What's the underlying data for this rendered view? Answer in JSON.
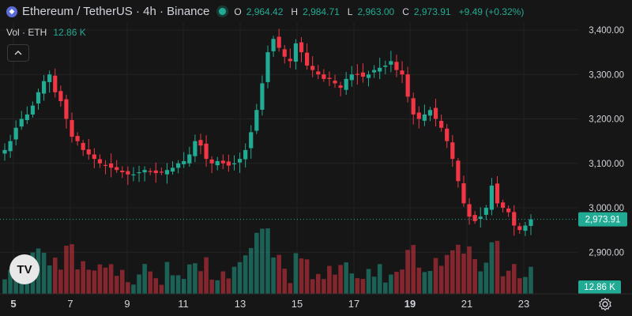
{
  "header": {
    "symbol_title": "Ethereum / TetherUS · 4h · Binance",
    "open_label": "O",
    "open_value": "2,964.42",
    "high_label": "H",
    "high_value": "2,984.71",
    "low_label": "L",
    "low_value": "2,963.00",
    "close_label": "C",
    "close_value": "2,973.91",
    "change_value": "+9.49 (+0.32%)"
  },
  "volume_legend": {
    "label": "Vol · ETH",
    "value": "12.86 K"
  },
  "logo_text": "TV",
  "icons": {
    "collapse": "chevron-up-icon",
    "settings": "gear-icon",
    "symbol": "ethereum-icon"
  },
  "colors": {
    "up": "#22ab94",
    "down": "#f23645",
    "background": "#161616",
    "accent": "#22ab94"
  },
  "chart_data": {
    "type": "candlestick",
    "y_ticks": [
      "3,400.00",
      "3,300.00",
      "3,200.00",
      "3,100.00",
      "3,000.00",
      "2,900.00"
    ],
    "y_tick_values": [
      3400,
      3300,
      3200,
      3100,
      3000,
      2900
    ],
    "x_ticks": [
      "5",
      "7",
      "9",
      "11",
      "13",
      "15",
      "17",
      "19",
      "21",
      "23"
    ],
    "x_tick_bold": [
      "5",
      "19"
    ],
    "last_price": "2,973.91",
    "last_price_value": 2973.91,
    "volume_badge": "12.86 K",
    "grid": true,
    "price_path": [
      3130,
      3150,
      3180,
      3200,
      3210,
      3230,
      3260,
      3285,
      3300,
      3260,
      3240,
      3200,
      3160,
      3150,
      3130,
      3120,
      3110,
      3100,
      3095,
      3090,
      3085,
      3080,
      3075,
      3075,
      3080,
      3085,
      3082,
      3078,
      3080,
      3085,
      3090,
      3100,
      3105,
      3120,
      3150,
      3140,
      3110,
      3100,
      3105,
      3100,
      3095,
      3100,
      3110,
      3130,
      3170,
      3220,
      3280,
      3350,
      3380,
      3360,
      3340,
      3330,
      3370,
      3350,
      3320,
      3310,
      3300,
      3290,
      3290,
      3280,
      3270,
      3290,
      3300,
      3300,
      3295,
      3300,
      3310,
      3315,
      3320,
      3330,
      3310,
      3300,
      3250,
      3210,
      3200,
      3210,
      3220,
      3200,
      3180,
      3150,
      3110,
      3060,
      3010,
      2980,
      2970,
      2980,
      3000,
      3050,
      3010,
      3000,
      2990,
      2960,
      2950,
      2960,
      2974
    ]
  }
}
